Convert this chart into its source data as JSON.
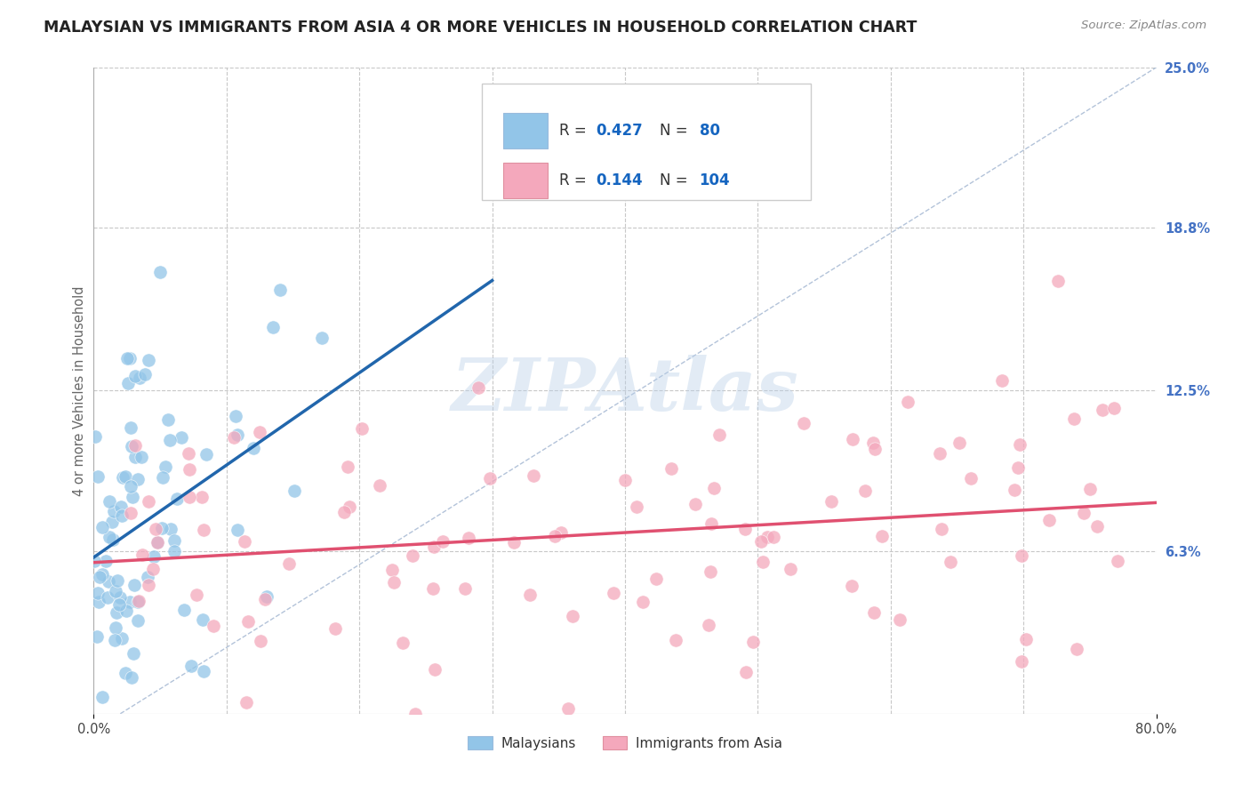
{
  "title": "MALAYSIAN VS IMMIGRANTS FROM ASIA 4 OR MORE VEHICLES IN HOUSEHOLD CORRELATION CHART",
  "source": "Source: ZipAtlas.com",
  "ylabel": "4 or more Vehicles in Household",
  "xlim": [
    0.0,
    80.0
  ],
  "ylim": [
    0.0,
    25.0
  ],
  "xtick_positions": [
    0.0,
    80.0
  ],
  "xtick_labels": [
    "0.0%",
    "80.0%"
  ],
  "xtick_minor": [
    10.0,
    20.0,
    30.0,
    40.0,
    50.0,
    60.0,
    70.0
  ],
  "yticks_right": [
    6.3,
    12.5,
    18.8,
    25.0
  ],
  "ytick_labels_right": [
    "6.3%",
    "12.5%",
    "18.8%",
    "25.0%"
  ],
  "grid_color": "#c8c8c8",
  "background_color": "#ffffff",
  "watermark_text": "ZIPAtlas",
  "watermark_color": "#b8cfe8",
  "series": [
    {
      "name": "Malaysians",
      "R": "0.427",
      "N": "80",
      "dot_color": "#92c5e8",
      "trend_color": "#2166ac"
    },
    {
      "name": "Immigrants from Asia",
      "R": "0.144",
      "N": "104",
      "dot_color": "#f4a8bc",
      "trend_color": "#e05070"
    }
  ],
  "legend_text_color": "#1565c0",
  "legend_box_color": "#cccccc",
  "title_color": "#222222",
  "source_color": "#888888",
  "diag_line_color": "#a0b4d0",
  "ylabel_color": "#666666",
  "right_tick_color": "#4472c4"
}
